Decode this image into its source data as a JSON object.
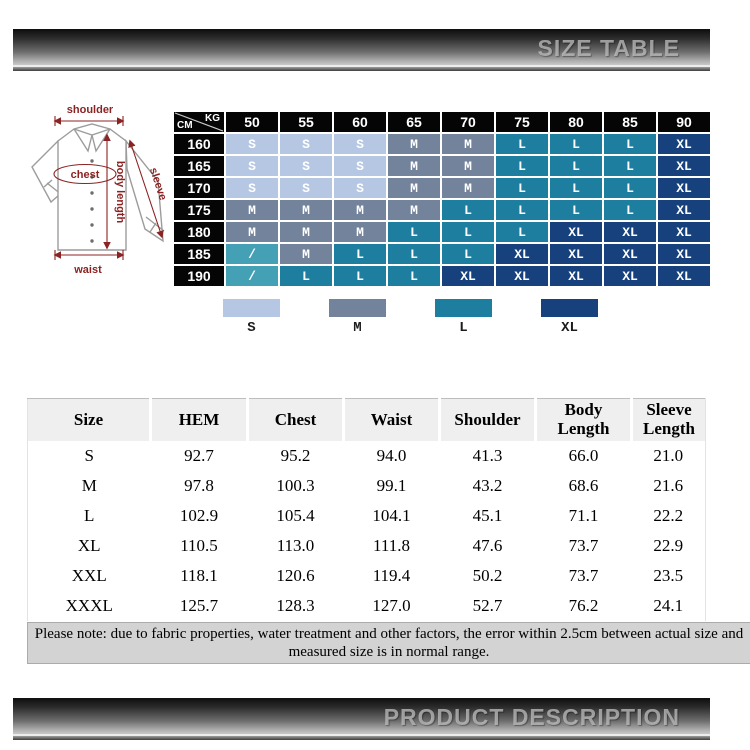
{
  "top_banner": {
    "title": "SIZE TABLE"
  },
  "bottom_banner": {
    "title": "PRODUCT DESCRIPTION"
  },
  "diagram": {
    "labels": {
      "shoulder": "shoulder",
      "chest": "chest",
      "sleeve": "sleeve",
      "body_length": "body length",
      "waist": "waist"
    }
  },
  "size_matrix": {
    "corner": {
      "kg": "KG",
      "cm": "CM"
    },
    "weight_headers": [
      "50",
      "55",
      "60",
      "65",
      "70",
      "75",
      "80",
      "85",
      "90"
    ],
    "rows": [
      {
        "height": "160",
        "cells": [
          "S",
          "S",
          "S",
          "M",
          "M",
          "L",
          "L",
          "L",
          "XL"
        ]
      },
      {
        "height": "165",
        "cells": [
          "S",
          "S",
          "S",
          "M",
          "M",
          "L",
          "L",
          "L",
          "XL"
        ]
      },
      {
        "height": "170",
        "cells": [
          "S",
          "S",
          "S",
          "M",
          "M",
          "L",
          "L",
          "L",
          "XL"
        ]
      },
      {
        "height": "175",
        "cells": [
          "M",
          "M",
          "M",
          "M",
          "L",
          "L",
          "L",
          "L",
          "XL"
        ]
      },
      {
        "height": "180",
        "cells": [
          "M",
          "M",
          "M",
          "L",
          "L",
          "L",
          "XL",
          "XL",
          "XL"
        ]
      },
      {
        "height": "185",
        "cells": [
          "/",
          "M",
          "L",
          "L",
          "L",
          "XL",
          "XL",
          "XL",
          "XL"
        ]
      },
      {
        "height": "190",
        "cells": [
          "/",
          "L",
          "L",
          "L",
          "XL",
          "XL",
          "XL",
          "XL",
          "XL"
        ]
      }
    ],
    "cell_colors": {
      "S": "#b5c7e2",
      "M": "#74839c",
      "L": "#1e7ea0",
      "XL": "#16417c",
      "/": "#44a0b4"
    }
  },
  "legend": {
    "items": [
      {
        "label": "S",
        "color": "#b5c7e2"
      },
      {
        "label": "M",
        "color": "#74839c"
      },
      {
        "label": "L",
        "color": "#1e7ea0"
      },
      {
        "label": "XL",
        "color": "#16417c"
      }
    ]
  },
  "measurement_table": {
    "headers": [
      "Size",
      "HEM",
      "Chest",
      "Waist",
      "Shoulder",
      "Body Length",
      "Sleeve Length"
    ],
    "rows": [
      [
        "S",
        "92.7",
        "95.2",
        "94.0",
        "41.3",
        "66.0",
        "21.0"
      ],
      [
        "M",
        "97.8",
        "100.3",
        "99.1",
        "43.2",
        "68.6",
        "21.6"
      ],
      [
        "L",
        "102.9",
        "105.4",
        "104.1",
        "45.1",
        "71.1",
        "22.2"
      ],
      [
        "XL",
        "110.5",
        "113.0",
        "111.8",
        "47.6",
        "73.7",
        "22.9"
      ],
      [
        "XXL",
        "118.1",
        "120.6",
        "119.4",
        "50.2",
        "73.7",
        "23.5"
      ],
      [
        "XXXL",
        "125.7",
        "128.3",
        "127.0",
        "52.7",
        "76.2",
        "24.1"
      ]
    ]
  },
  "note": {
    "text": "Please note: due to fabric properties, water treatment and other factors, the error within 2.5cm between actual size and measured size is in normal range."
  }
}
